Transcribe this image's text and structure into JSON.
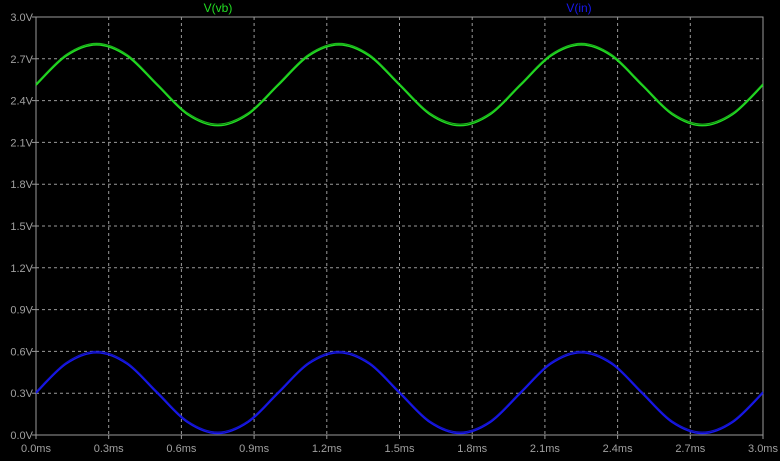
{
  "chart_data": {
    "type": "line",
    "background_color": "#000000",
    "grid": true,
    "grid_color": "#9a9a9a",
    "axis_color": "#9a9a9a",
    "legend_placement": "top",
    "x_range": [
      0.0,
      3.0
    ],
    "y_range": [
      0.0,
      3.0
    ],
    "x_ticks": [
      {
        "value": 0.0,
        "label": "0.0ms"
      },
      {
        "value": 0.3,
        "label": "0.3ms"
      },
      {
        "value": 0.6,
        "label": "0.6ms"
      },
      {
        "value": 0.9,
        "label": "0.9ms"
      },
      {
        "value": 1.2,
        "label": "1.2ms"
      },
      {
        "value": 1.5,
        "label": "1.5ms"
      },
      {
        "value": 1.8,
        "label": "1.8ms"
      },
      {
        "value": 2.1,
        "label": "2.1ms"
      },
      {
        "value": 2.4,
        "label": "2.4ms"
      },
      {
        "value": 2.7,
        "label": "2.7ms"
      },
      {
        "value": 3.0,
        "label": "3.0ms"
      }
    ],
    "y_ticks": [
      {
        "value": 0.0,
        "label": "0.0V"
      },
      {
        "value": 0.3,
        "label": "0.3V"
      },
      {
        "value": 0.6,
        "label": "0.6V"
      },
      {
        "value": 0.9,
        "label": "0.9V"
      },
      {
        "value": 1.2,
        "label": "1.2V"
      },
      {
        "value": 1.5,
        "label": "1.5V"
      },
      {
        "value": 1.8,
        "label": "1.8V"
      },
      {
        "value": 2.1,
        "label": "2.1V"
      },
      {
        "value": 2.4,
        "label": "2.4V"
      },
      {
        "value": 2.7,
        "label": "2.7V"
      },
      {
        "value": 3.0,
        "label": "3.0V"
      }
    ],
    "series": [
      {
        "name": "V(vb)",
        "color": "#22dd22",
        "x": [
          0.0,
          0.125,
          0.25,
          0.375,
          0.5,
          0.625,
          0.75,
          0.875,
          1.0,
          1.125,
          1.25,
          1.375,
          1.5,
          1.625,
          1.75,
          1.875,
          2.0,
          2.125,
          2.25,
          2.375,
          2.5,
          2.625,
          2.75,
          2.875,
          3.0
        ],
        "values": [
          2.51,
          2.72,
          2.8,
          2.72,
          2.51,
          2.3,
          2.22,
          2.3,
          2.51,
          2.72,
          2.8,
          2.72,
          2.51,
          2.3,
          2.22,
          2.3,
          2.51,
          2.72,
          2.8,
          2.72,
          2.51,
          2.3,
          2.22,
          2.3,
          2.51
        ]
      },
      {
        "name": "V(in)",
        "color": "#1818ee",
        "x": [
          0.0,
          0.125,
          0.25,
          0.375,
          0.5,
          0.625,
          0.75,
          0.875,
          1.0,
          1.125,
          1.25,
          1.375,
          1.5,
          1.625,
          1.75,
          1.875,
          2.0,
          2.125,
          2.25,
          2.375,
          2.5,
          2.625,
          2.75,
          2.875,
          3.0
        ],
        "values": [
          0.3,
          0.51,
          0.59,
          0.51,
          0.3,
          0.09,
          0.01,
          0.09,
          0.3,
          0.51,
          0.59,
          0.51,
          0.3,
          0.09,
          0.01,
          0.09,
          0.3,
          0.51,
          0.59,
          0.51,
          0.3,
          0.09,
          0.01,
          0.09,
          0.3
        ]
      }
    ]
  }
}
